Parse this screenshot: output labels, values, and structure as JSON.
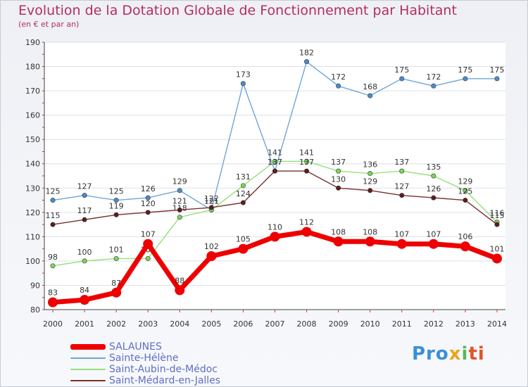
{
  "header": {
    "title": "Evolution de la Dotation Globale de Fonctionnement par Habitant",
    "subtitle": "(en € et par an)"
  },
  "logo": {
    "text": "Proxiti",
    "parts": [
      "Pro",
      "x",
      "i",
      "ti"
    ]
  },
  "chart_data": {
    "type": "line",
    "title": "Evolution de la Dotation Globale de Fonctionnement par Habitant",
    "subtitle": "(en € et par an)",
    "xlabel": "",
    "ylabel": "",
    "x": [
      2000,
      2001,
      2002,
      2003,
      2004,
      2005,
      2006,
      2007,
      2008,
      2009,
      2010,
      2011,
      2012,
      2013,
      2014
    ],
    "ylim": [
      80,
      190
    ],
    "yticks": [
      80,
      90,
      100,
      110,
      120,
      130,
      140,
      150,
      160,
      170,
      180,
      190
    ],
    "legend_position": "bottom-left",
    "series": [
      {
        "name": "SALAUNES",
        "color": "#ee0000",
        "point_color": "#ee0000",
        "values": [
          83,
          84,
          87,
          107,
          88,
          102,
          105,
          110,
          112,
          108,
          108,
          107,
          107,
          106,
          101
        ]
      },
      {
        "name": "Sainte-Hélène",
        "color": "#6fa6d6",
        "point_color": "#4a8cc8",
        "values": [
          125,
          127,
          125,
          126,
          129,
          121,
          173,
          137,
          182,
          172,
          168,
          175,
          172,
          175,
          175
        ]
      },
      {
        "name": "Saint-Aubin-de-Médoc",
        "color": "#96e07a",
        "point_color": "#7ad45a",
        "values": [
          98,
          100,
          101,
          101,
          118,
          121,
          131,
          141,
          141,
          137,
          136,
          137,
          135,
          129,
          116
        ]
      },
      {
        "name": "Saint-Médard-en-Jalles",
        "color": "#7a3030",
        "point_color": "#5e1c1c",
        "values": [
          115,
          117,
          119,
          120,
          121,
          122,
          124,
          137,
          137,
          130,
          129,
          127,
          126,
          125,
          115
        ]
      }
    ]
  }
}
